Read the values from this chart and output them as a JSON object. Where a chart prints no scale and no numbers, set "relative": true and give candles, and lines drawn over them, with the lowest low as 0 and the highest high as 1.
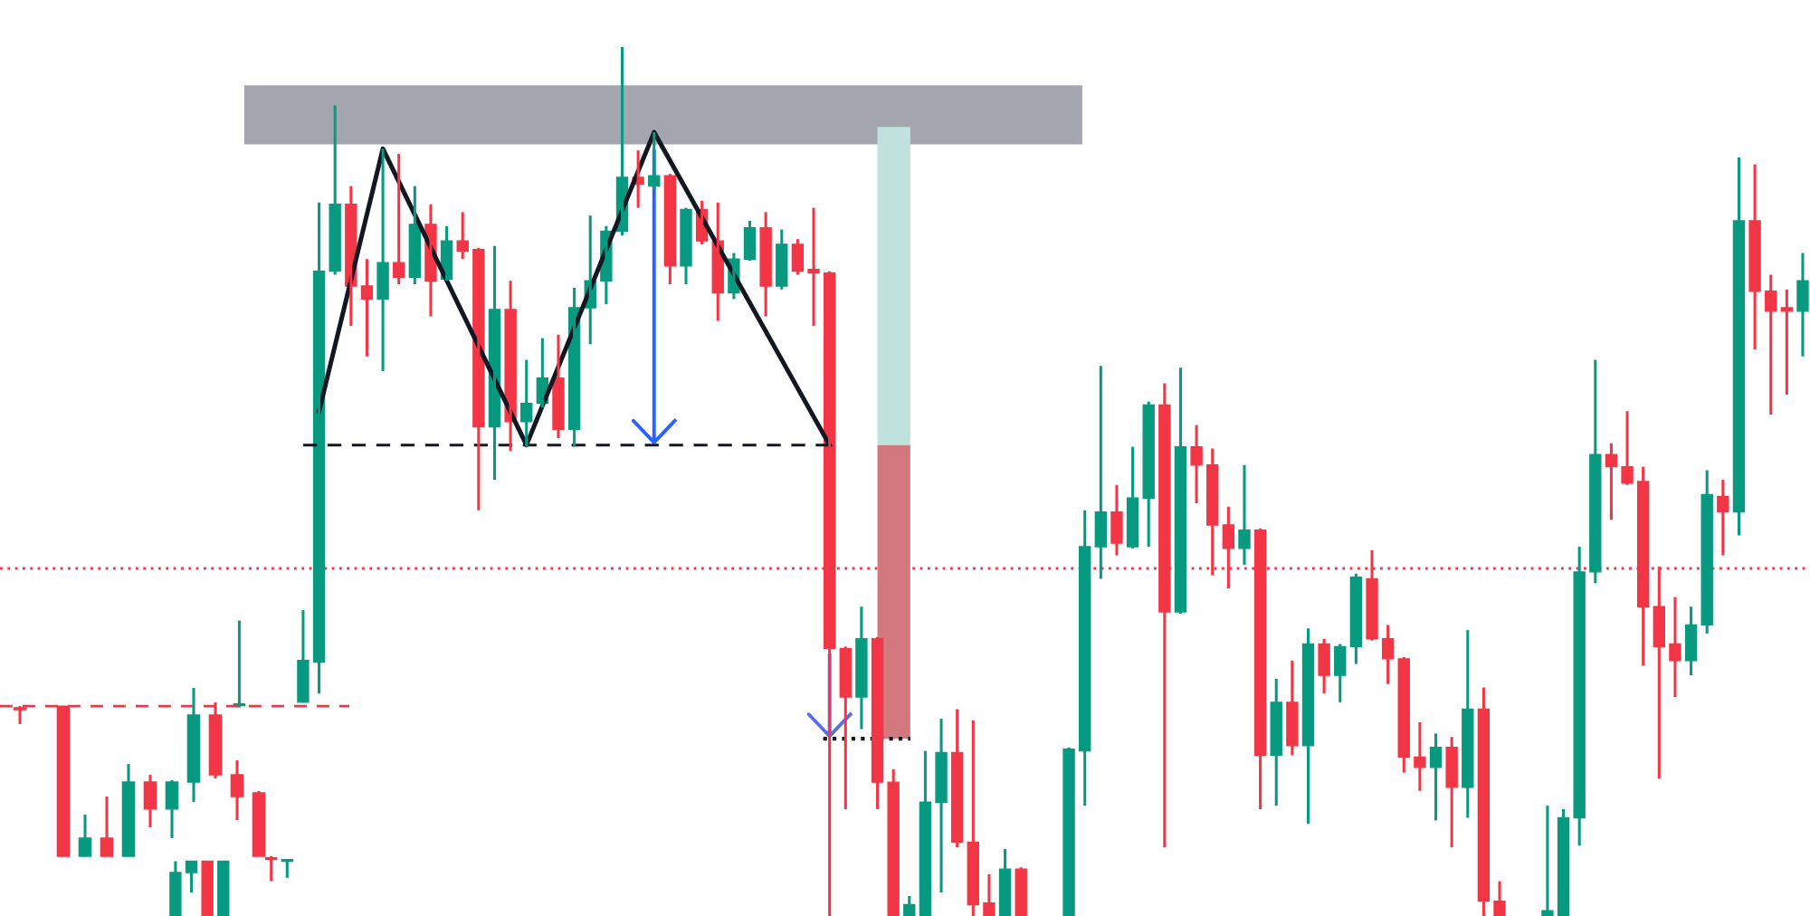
{
  "chart_data": [
    {
      "type": "candlestick",
      "relative": true,
      "categories": [
        null,
        null,
        null,
        null,
        null,
        null,
        null,
        null,
        null,
        null,
        null,
        null,
        null,
        null,
        null,
        null,
        null,
        null,
        null,
        null,
        null,
        null,
        null,
        null,
        null,
        null,
        null,
        null,
        null,
        null,
        null,
        null,
        null,
        null,
        null,
        null,
        null,
        null,
        null,
        null,
        null,
        null,
        null,
        null,
        null,
        null,
        null,
        null,
        null,
        null,
        null,
        null,
        null,
        null,
        null,
        null,
        null,
        null,
        null,
        null,
        null,
        null,
        null,
        null,
        null,
        null,
        null,
        null,
        null,
        null,
        null,
        null,
        null,
        null,
        null,
        null,
        null,
        null,
        null,
        null,
        null,
        null,
        null,
        null,
        null,
        null,
        null,
        null,
        null,
        null,
        null,
        null,
        null,
        null,
        null,
        null,
        null,
        null,
        null,
        null,
        null,
        null,
        null
      ],
      "ohlc": [
        [
          0,
          0.063,
          0,
          0.05
        ],
        [
          0.05,
          0.063,
          0.027,
          0.063
        ],
        [
          0.063,
          0.063,
          0,
          0
        ],
        [
          0,
          0.063,
          0,
          0.063
        ],
        [
          0.242,
          0.34,
          0.24,
          0.244
        ],
        null,
        [
          0.067,
          0.069,
          0.04,
          0.065
        ],
        [
          0.063,
          0.065,
          0.044,
          0.065
        ],
        [
          0.246,
          0.352,
          0.246,
          0.294
        ],
        [
          0.292,
          0.821,
          0.256,
          0.742
        ],
        [
          0.742,
          0.933,
          0.738,
          0.819
        ],
        [
          0.819,
          0.84,
          0.679,
          0.725
        ],
        [
          0.725,
          0.756,
          0.644,
          0.71
        ],
        [
          0.71,
          0.883,
          0.627,
          0.752
        ],
        [
          0.752,
          0.877,
          0.727,
          0.735
        ],
        [
          0.735,
          0.84,
          0.727,
          0.796
        ],
        [
          0.796,
          0.819,
          0.69,
          0.731
        ],
        [
          0.733,
          0.794,
          0.731,
          0.777
        ],
        [
          0.777,
          0.81,
          0.756,
          0.765
        ],
        [
          0.767,
          0.769,
          0.467,
          0.563
        ],
        [
          0.563,
          0.771,
          0.502,
          0.698
        ],
        [
          0.698,
          0.731,
          0.535,
          0.569
        ],
        [
          0.569,
          0.64,
          0.54,
          0.59
        ],
        [
          0.59,
          0.665,
          0.585,
          0.619
        ],
        [
          0.619,
          0.669,
          0.55,
          0.56
        ],
        [
          0.56,
          0.723,
          0.54,
          0.7
        ],
        [
          0.7,
          0.806,
          0.658,
          0.731
        ],
        [
          0.731,
          0.794,
          0.704,
          0.788
        ],
        [
          0.788,
          1,
          0.783,
          0.85
        ],
        [
          0.85,
          0.881,
          0.815,
          0.842
        ],
        [
          0.84,
          0.902,
          0.835,
          0.852
        ],
        [
          0.852,
          0.854,
          0.727,
          0.748
        ],
        [
          0.748,
          0.815,
          0.727,
          0.813
        ],
        [
          0.813,
          0.823,
          0.773,
          0.777
        ],
        [
          0.777,
          0.821,
          0.685,
          0.717
        ],
        [
          0.717,
          0.763,
          0.71,
          0.756
        ],
        [
          0.756,
          0.8,
          0.754,
          0.792
        ],
        [
          0.792,
          0.81,
          0.69,
          0.725
        ],
        [
          0.725,
          0.79,
          0.721,
          0.773
        ],
        [
          0.773,
          0.779,
          0.738,
          0.742
        ],
        [
          0.744,
          0.815,
          0.679,
          0.74
        ],
        [
          0.74,
          0.742,
          0,
          0.308
        ],
        [
          0.308,
          0.31,
          0.123,
          0.252
        ],
        [
          0.252,
          0.356,
          0.215,
          0.319
        ],
        [
          0.319,
          0.321,
          0.123,
          0.154
        ],
        [
          0.154,
          0.169,
          0,
          0
        ],
        [
          0,
          0.023,
          0,
          0.013
        ],
        [
          0,
          0.19,
          0,
          0.131
        ],
        [
          0.131,
          0.227,
          0.027,
          0.188
        ],
        [
          0.188,
          0.238,
          0.079,
          0.085
        ],
        [
          0.085,
          0.225,
          0,
          0.013
        ],
        [
          0.015,
          0.048,
          0,
          0
        ],
        [
          0,
          0.077,
          0,
          0.054
        ],
        [
          0.054,
          0.056,
          0,
          0
        ],
        null,
        null,
        [
          0,
          0.194,
          0,
          0.192
        ],
        [
          0.19,
          0.467,
          0.127,
          0.425
        ],
        [
          0.425,
          0.633,
          0.388,
          0.465
        ],
        [
          0.465,
          0.496,
          0.415,
          0.429
        ],
        [
          0.425,
          0.54,
          0.423,
          0.481
        ],
        [
          0.481,
          0.592,
          0.425,
          0.588
        ],
        [
          0.588,
          0.613,
          0.079,
          0.35
        ],
        [
          0.35,
          0.631,
          0.348,
          0.54
        ],
        [
          0.54,
          0.565,
          0.475,
          0.519
        ],
        [
          0.519,
          0.538,
          0.392,
          0.45
        ],
        [
          0.45,
          0.471,
          0.377,
          0.423
        ],
        [
          0.423,
          0.519,
          0.404,
          0.444
        ],
        [
          0.444,
          0.446,
          0.123,
          0.185
        ],
        [
          0.185,
          0.273,
          0.127,
          0.246
        ],
        [
          0.246,
          0.294,
          0.185,
          0.196
        ],
        [
          0.196,
          0.331,
          0.106,
          0.313
        ],
        [
          0.313,
          0.319,
          0.256,
          0.277
        ],
        [
          0.277,
          0.313,
          0.246,
          0.31
        ],
        [
          0.31,
          0.394,
          0.29,
          0.39
        ],
        [
          0.388,
          0.421,
          0.317,
          0.319
        ],
        [
          0.319,
          0.335,
          0.267,
          0.296
        ],
        [
          0.296,
          0.298,
          0.165,
          0.183
        ],
        [
          0.183,
          0.223,
          0.144,
          0.171
        ],
        [
          0.171,
          0.21,
          0.11,
          0.194
        ],
        [
          0.194,
          0.206,
          0.079,
          0.148
        ],
        [
          0.148,
          0.329,
          0.113,
          0.238
        ],
        [
          0.238,
          0.263,
          0,
          0.017
        ],
        [
          0.017,
          0.04,
          0,
          0
        ],
        null,
        null,
        [
          0,
          0.127,
          0,
          0.006
        ],
        [
          0,
          0.123,
          0,
          0.113
        ],
        [
          0.113,
          0.425,
          0.081,
          0.396
        ],
        [
          0.396,
          0.64,
          0.383,
          0.531
        ],
        [
          0.531,
          0.544,
          0.456,
          0.517
        ],
        [
          0.517,
          0.581,
          0.496,
          0.498
        ],
        [
          0.5,
          0.517,
          0.288,
          0.356
        ],
        [
          0.356,
          0.402,
          0.158,
          0.31
        ],
        [
          0.313,
          0.367,
          0.252,
          0.294
        ],
        [
          0.294,
          0.356,
          0.277,
          0.335
        ],
        [
          0.335,
          0.513,
          0.325,
          0.485
        ],
        [
          0.483,
          0.502,
          0.415,
          0.465
        ],
        [
          0.465,
          0.873,
          0.438,
          0.8
        ],
        [
          0.8,
          0.865,
          0.652,
          0.719
        ],
        [
          0.719,
          0.738,
          0.577,
          0.696
        ],
        [
          0.7,
          0.721,
          0.6,
          0.696
        ],
        [
          0.696,
          0.763,
          0.644,
          0.731
        ]
      ],
      "series": [
        {
          "type": "line",
          "color": "#131722",
          "values": [
            null,
            null,
            null,
            null,
            null,
            null,
            null,
            null,
            null,
            0.581,
            null,
            null,
            null,
            0.883,
            null,
            null,
            null,
            null,
            null,
            null,
            null,
            null,
            0.542,
            null,
            null,
            null,
            null,
            null,
            null,
            null,
            0.902,
            null,
            null,
            null,
            null,
            null,
            null,
            null,
            null,
            null,
            null,
            0.542,
            null,
            null,
            null,
            null,
            null,
            null,
            null,
            null,
            null,
            null,
            null,
            null,
            null,
            null,
            null,
            null,
            null,
            null,
            null,
            null,
            null,
            null,
            null,
            null,
            null,
            null,
            null,
            null,
            null,
            null,
            null,
            null,
            null,
            null,
            null,
            null,
            null,
            null,
            null,
            null,
            null,
            null,
            null,
            null,
            null,
            null,
            null,
            null,
            null,
            null,
            null,
            null,
            null,
            null,
            null,
            null,
            null,
            null,
            null,
            null,
            null
          ]
        },
        {
          "type": "line",
          "color": "#131722",
          "line_style": "dashed",
          "values": [
            null,
            null,
            null,
            null,
            null,
            null,
            null,
            null,
            0.542,
            null,
            null,
            null,
            null,
            null,
            null,
            null,
            null,
            null,
            null,
            null,
            null,
            null,
            null,
            null,
            null,
            null,
            null,
            null,
            null,
            null,
            null,
            null,
            null,
            null,
            null,
            null,
            null,
            null,
            null,
            null,
            null,
            0.542,
            null,
            null,
            null,
            null,
            null,
            null,
            null,
            null,
            null,
            null,
            null,
            null,
            null,
            null,
            null,
            null,
            null,
            null,
            null,
            null,
            null,
            null,
            null,
            null,
            null,
            null,
            null,
            null,
            null,
            null,
            null,
            null,
            null,
            null,
            null,
            null,
            null,
            null,
            null,
            null,
            null,
            null,
            null,
            null,
            null,
            null,
            null,
            null,
            null,
            null,
            null,
            null,
            null,
            null,
            null,
            null,
            null,
            null,
            null,
            null,
            null
          ]
        }
      ],
      "ref_lines": [
        {
          "axis": "y",
          "value": 0.4,
          "color": "#f23645",
          "line_style": "dotted"
        }
      ]
    },
    {
      "type": "candlestick",
      "relative": true,
      "categories": [
        null,
        null,
        null,
        null,
        null,
        null,
        null,
        null,
        null,
        null,
        null,
        null
      ],
      "ohlc": [
        [
          0.882,
          0.892,
          0.785,
          0.871
        ],
        null,
        [
          0.892,
          0.892,
          0,
          0
        ],
        [
          0,
          0.247,
          0,
          0.108
        ],
        [
          0.108,
          0.355,
          0,
          0
        ],
        [
          0,
          0.548,
          0,
          0.441
        ],
        [
          0.441,
          0.484,
          0.172,
          0.28
        ],
        [
          0.28,
          0.452,
          0.108,
          0.441
        ],
        [
          0.441,
          1,
          0.323,
          0.839
        ],
        [
          0.839,
          0.914,
          0.462,
          0.484
        ],
        [
          0.484,
          0.57,
          0.215,
          0.355
        ],
        [
          0.376,
          0.387,
          0,
          0
        ]
      ],
      "ref_lines": [
        {
          "axis": "y",
          "value": 0.892,
          "color": "#f23645",
          "line_style": "dashed"
        }
      ]
    }
  ]
}
